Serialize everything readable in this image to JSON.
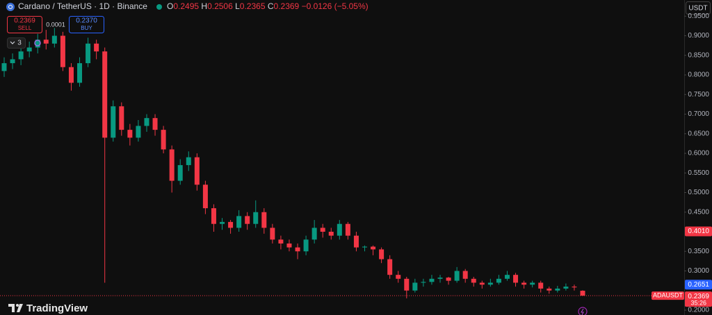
{
  "chart_data": {
    "type": "candlestick",
    "title": "Cardano / TetherUS · 1D · Binance",
    "ohlc": [
      {
        "label": "O",
        "value": "0.2495"
      },
      {
        "label": "H",
        "value": "0.2506"
      },
      {
        "label": "L",
        "value": "0.2365"
      },
      {
        "label": "C",
        "value": "0.2369"
      }
    ],
    "change": "−0.0126 (−5.05%)",
    "sell": {
      "price": "0.2369",
      "label": "SELL"
    },
    "spread": "0.0001",
    "buy": {
      "price": "0.2370",
      "label": "BUY"
    },
    "indicators": "3",
    "currency": "USDT",
    "brand": "TradingView",
    "up_color": "#089981",
    "down_color": "#f23645",
    "ylim": [
      0.1876,
      0.9912
    ],
    "yticks": [
      {
        "value": 0.2,
        "label": "0.2000"
      },
      {
        "value": 0.3,
        "label": "0.3000"
      },
      {
        "value": 0.35,
        "label": "0.3500"
      },
      {
        "value": 0.45,
        "label": "0.4500"
      },
      {
        "value": 0.5,
        "label": "0.5000"
      },
      {
        "value": 0.55,
        "label": "0.5500"
      },
      {
        "value": 0.6,
        "label": "0.6000"
      },
      {
        "value": 0.65,
        "label": "0.6500"
      },
      {
        "value": 0.7,
        "label": "0.7000"
      },
      {
        "value": 0.75,
        "label": "0.7500"
      },
      {
        "value": 0.8,
        "label": "0.8000"
      },
      {
        "value": 0.85,
        "label": "0.8500"
      },
      {
        "value": 0.9,
        "label": "0.9000"
      },
      {
        "value": 0.95,
        "label": "0.9500"
      }
    ],
    "price_tags": [
      {
        "value": 0.401,
        "label": "0.4010",
        "color": "#f23645"
      },
      {
        "value": 0.2651,
        "label": "0.2651",
        "color": "#2962ff"
      }
    ],
    "last_price": {
      "symbol": "ADAUSDT",
      "value": 0.2369,
      "label": "0.2369",
      "countdown": "35:26",
      "color": "#f23645"
    },
    "candles": [
      [
        0.81,
        0.845,
        0.795,
        0.83
      ],
      [
        0.83,
        0.855,
        0.815,
        0.84
      ],
      [
        0.84,
        0.875,
        0.825,
        0.86
      ],
      [
        0.86,
        0.885,
        0.845,
        0.87
      ],
      [
        0.87,
        0.905,
        0.855,
        0.89
      ],
      [
        0.89,
        0.915,
        0.865,
        0.88
      ],
      [
        0.88,
        0.92,
        0.87,
        0.9
      ],
      [
        0.9,
        0.91,
        0.81,
        0.82
      ],
      [
        0.82,
        0.83,
        0.76,
        0.78
      ],
      [
        0.78,
        0.845,
        0.77,
        0.83
      ],
      [
        0.83,
        0.895,
        0.82,
        0.88
      ],
      [
        0.88,
        0.89,
        0.84,
        0.86
      ],
      [
        0.86,
        0.87,
        0.27,
        0.64
      ],
      [
        0.64,
        0.735,
        0.63,
        0.72
      ],
      [
        0.72,
        0.73,
        0.645,
        0.66
      ],
      [
        0.66,
        0.675,
        0.62,
        0.64
      ],
      [
        0.64,
        0.685,
        0.63,
        0.67
      ],
      [
        0.67,
        0.7,
        0.655,
        0.69
      ],
      [
        0.69,
        0.7,
        0.645,
        0.66
      ],
      [
        0.66,
        0.67,
        0.6,
        0.61
      ],
      [
        0.61,
        0.62,
        0.5,
        0.53
      ],
      [
        0.53,
        0.585,
        0.52,
        0.57
      ],
      [
        0.57,
        0.605,
        0.555,
        0.59
      ],
      [
        0.59,
        0.6,
        0.505,
        0.52
      ],
      [
        0.52,
        0.53,
        0.445,
        0.46
      ],
      [
        0.46,
        0.47,
        0.4,
        0.42
      ],
      [
        0.42,
        0.435,
        0.405,
        0.425
      ],
      [
        0.425,
        0.43,
        0.395,
        0.41
      ],
      [
        0.41,
        0.455,
        0.4,
        0.44
      ],
      [
        0.44,
        0.45,
        0.405,
        0.42
      ],
      [
        0.42,
        0.48,
        0.41,
        0.45
      ],
      [
        0.45,
        0.46,
        0.395,
        0.41
      ],
      [
        0.41,
        0.42,
        0.37,
        0.38
      ],
      [
        0.38,
        0.39,
        0.355,
        0.37
      ],
      [
        0.37,
        0.38,
        0.35,
        0.36
      ],
      [
        0.36,
        0.37,
        0.33,
        0.35
      ],
      [
        0.35,
        0.39,
        0.34,
        0.38
      ],
      [
        0.38,
        0.43,
        0.37,
        0.41
      ],
      [
        0.41,
        0.42,
        0.385,
        0.4
      ],
      [
        0.4,
        0.41,
        0.38,
        0.39
      ],
      [
        0.39,
        0.43,
        0.38,
        0.42
      ],
      [
        0.42,
        0.425,
        0.38,
        0.39
      ],
      [
        0.39,
        0.4,
        0.35,
        0.36
      ],
      [
        0.36,
        0.365,
        0.35,
        0.362
      ],
      [
        0.362,
        0.365,
        0.34,
        0.355
      ],
      [
        0.355,
        0.36,
        0.32,
        0.33
      ],
      [
        0.33,
        0.34,
        0.28,
        0.29
      ],
      [
        0.29,
        0.3,
        0.27,
        0.28
      ],
      [
        0.28,
        0.285,
        0.23,
        0.25
      ],
      [
        0.25,
        0.28,
        0.245,
        0.27
      ],
      [
        0.27,
        0.28,
        0.26,
        0.272
      ],
      [
        0.272,
        0.29,
        0.265,
        0.28
      ],
      [
        0.28,
        0.29,
        0.27,
        0.283
      ],
      [
        0.283,
        0.285,
        0.265,
        0.275
      ],
      [
        0.275,
        0.31,
        0.27,
        0.3
      ],
      [
        0.3,
        0.305,
        0.27,
        0.28
      ],
      [
        0.28,
        0.285,
        0.26,
        0.27
      ],
      [
        0.27,
        0.275,
        0.255,
        0.265
      ],
      [
        0.265,
        0.28,
        0.26,
        0.27
      ],
      [
        0.27,
        0.29,
        0.265,
        0.28
      ],
      [
        0.28,
        0.3,
        0.275,
        0.29
      ],
      [
        0.29,
        0.295,
        0.26,
        0.27
      ],
      [
        0.27,
        0.275,
        0.255,
        0.265
      ],
      [
        0.265,
        0.275,
        0.258,
        0.27
      ],
      [
        0.27,
        0.275,
        0.245,
        0.255
      ],
      [
        0.255,
        0.26,
        0.242,
        0.25
      ],
      [
        0.25,
        0.262,
        0.245,
        0.255
      ],
      [
        0.255,
        0.268,
        0.25,
        0.26
      ],
      [
        0.26,
        0.265,
        0.25,
        0.258
      ],
      [
        0.2495,
        0.2506,
        0.2365,
        0.2369
      ]
    ]
  }
}
